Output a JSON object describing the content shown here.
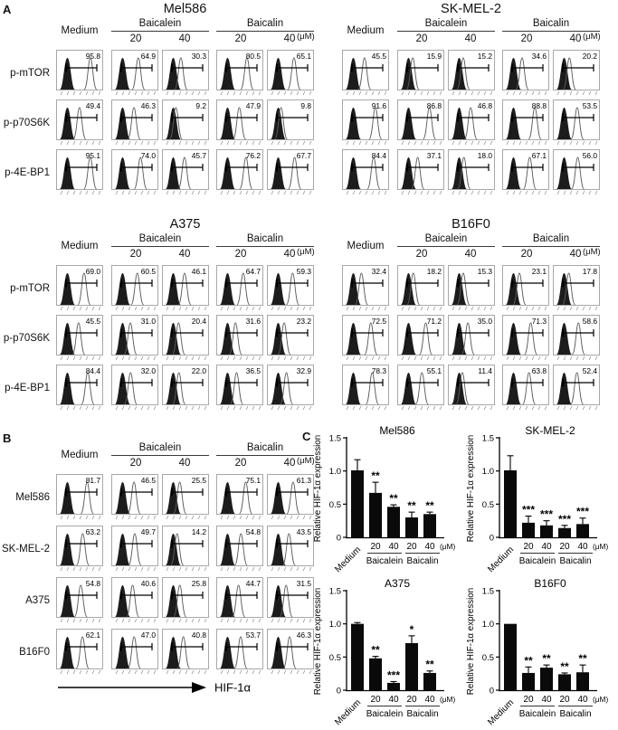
{
  "labels": {
    "panel_a": "A",
    "panel_b": "B",
    "panel_c": "C"
  },
  "header": {
    "medium": "Medium",
    "treatments": [
      {
        "name": "Baicalein",
        "doses": [
          "20",
          "40"
        ]
      },
      {
        "name": "Baicalin",
        "doses": [
          "20",
          "40"
        ]
      }
    ],
    "unit": "(μM)"
  },
  "panel_a": {
    "groups": [
      {
        "title": "Mel586",
        "rows": [
          {
            "label": "p-mTOR",
            "values": [
              "95.8",
              "64.9",
              "30.3",
              "80.5",
              "65.1"
            ]
          },
          {
            "label": "p-p70S6K",
            "values": [
              "49.4",
              "46.3",
              "9.2",
              "47.9",
              "9.8"
            ]
          },
          {
            "label": "p-4E-BP1",
            "values": [
              "95.1",
              "74.0",
              "45.7",
              "76.2",
              "67.7"
            ]
          }
        ]
      },
      {
        "title": "SK-MEL-2",
        "rows": [
          {
            "label": "p-mTOR",
            "values": [
              "45.5",
              "15.9",
              "15.2",
              "34.6",
              "20.2"
            ]
          },
          {
            "label": "p-p70S6K",
            "values": [
              "91.6",
              "86.8",
              "46.8",
              "88.8",
              "53.5"
            ]
          },
          {
            "label": "p-4E-BP1",
            "values": [
              "84.4",
              "37.1",
              "18.0",
              "67.1",
              "56.0"
            ]
          }
        ]
      },
      {
        "title": "A375",
        "rows": [
          {
            "label": "p-mTOR",
            "values": [
              "69.0",
              "60.5",
              "46.1",
              "64.7",
              "59.3"
            ]
          },
          {
            "label": "p-p70S6K",
            "values": [
              "45.5",
              "31.0",
              "20.4",
              "31.6",
              "23.2"
            ]
          },
          {
            "label": "p-4E-BP1",
            "values": [
              "84.4",
              "32.0",
              "22.0",
              "36.5",
              "32.9"
            ]
          }
        ]
      },
      {
        "title": "B16F0",
        "rows": [
          {
            "label": "p-mTOR",
            "values": [
              "32.4",
              "18.2",
              "15.3",
              "23.1",
              "17.8"
            ]
          },
          {
            "label": "p-p70S6K",
            "values": [
              "72.5",
              "71.2",
              "35.0",
              "71.3",
              "58.6"
            ]
          },
          {
            "label": "p-4E-BP1",
            "values": [
              "78.3",
              "55.1",
              "11.4",
              "63.8",
              "52.4"
            ]
          }
        ]
      }
    ]
  },
  "panel_b": {
    "axis_label": "HIF-1α",
    "rows": [
      {
        "label": "Mel586",
        "values": [
          "81.7",
          "46.5",
          "25.5",
          "75.1",
          "61.3"
        ]
      },
      {
        "label": "SK-MEL-2",
        "values": [
          "63.2",
          "49.7",
          "14.2",
          "54.8",
          "43.5"
        ]
      },
      {
        "label": "A375",
        "values": [
          "54.8",
          "40.6",
          "25.8",
          "44.7",
          "31.5"
        ]
      },
      {
        "label": "B16F0",
        "values": [
          "62.1",
          "47.0",
          "40.8",
          "53.7",
          "46.3"
        ]
      }
    ]
  },
  "chart_data": [
    {
      "type": "bar",
      "title": "Mel586",
      "ylabel": "Relative HIF-1α expression",
      "ylim": [
        0,
        1.5
      ],
      "yticks": [
        0,
        0.5,
        1.0,
        1.5
      ],
      "ytick_labels": [
        "0",
        "0.5",
        "1.0",
        "1.5"
      ],
      "categories": [
        "Medium",
        "20",
        "40",
        "20",
        "40"
      ],
      "group_labels": [
        "Baicalein",
        "Baicalin"
      ],
      "unit": "(μM)",
      "grid": false,
      "legend": false,
      "values": [
        1.01,
        0.67,
        0.46,
        0.3,
        0.35
      ],
      "errors": [
        0.16,
        0.16,
        0.03,
        0.08,
        0.03
      ],
      "sig": [
        "",
        "**",
        "**",
        "**",
        "**"
      ]
    },
    {
      "type": "bar",
      "title": "SK-MEL-2",
      "ylabel": "Relative HIF-1α expression",
      "ylim": [
        0,
        1.5
      ],
      "yticks": [
        0,
        0.5,
        1.0,
        1.5
      ],
      "ytick_labels": [
        "0",
        "0.5",
        "1.0",
        "1.5"
      ],
      "categories": [
        "Medium",
        "20",
        "40",
        "20",
        "40"
      ],
      "group_labels": [
        "Baicalein",
        "Baicalin"
      ],
      "unit": "(μM)",
      "grid": false,
      "legend": false,
      "values": [
        1.01,
        0.22,
        0.18,
        0.14,
        0.2
      ],
      "errors": [
        0.22,
        0.1,
        0.07,
        0.04,
        0.09
      ],
      "sig": [
        "",
        "***",
        "***",
        "***",
        "***"
      ]
    },
    {
      "type": "bar",
      "title": "A375",
      "ylabel": "Relative HIF-1α expression",
      "ylim": [
        0,
        1.5
      ],
      "yticks": [
        0,
        0.5,
        1.0,
        1.5
      ],
      "ytick_labels": [
        "0",
        "0.5",
        "1.0",
        "1.5"
      ],
      "categories": [
        "Medium",
        "20",
        "40",
        "20",
        "40"
      ],
      "group_labels": [
        "Baicalein",
        "Baicalin"
      ],
      "unit": "(μM)",
      "grid": false,
      "legend": false,
      "values": [
        1.0,
        0.48,
        0.11,
        0.71,
        0.26
      ],
      "errors": [
        0.02,
        0.03,
        0.02,
        0.11,
        0.03
      ],
      "sig": [
        "",
        "**",
        "***",
        "*",
        "**"
      ]
    },
    {
      "type": "bar",
      "title": "B16F0",
      "ylabel": "Relative HIF-1α expression",
      "ylim": [
        0,
        1.5
      ],
      "yticks": [
        0,
        0.5,
        1.0,
        1.5
      ],
      "ytick_labels": [
        "0",
        "0.5",
        "1.0",
        "1.5"
      ],
      "categories": [
        "Medium",
        "20",
        "40",
        "20",
        "40"
      ],
      "group_labels": [
        "Baicalein",
        "Baicalin"
      ],
      "unit": "(μM)",
      "grid": false,
      "legend": false,
      "values": [
        1.0,
        0.26,
        0.34,
        0.24,
        0.27
      ],
      "errors": [
        0,
        0.09,
        0.04,
        0.02,
        0.11
      ],
      "sig": [
        "",
        "**",
        "**",
        "**",
        "**"
      ]
    }
  ],
  "colors": {
    "bar": "#0a0a0a",
    "hist_fill": "#1c1c1c",
    "hist_outline": "#5a5a5a",
    "frame": "#a8a8a8"
  }
}
